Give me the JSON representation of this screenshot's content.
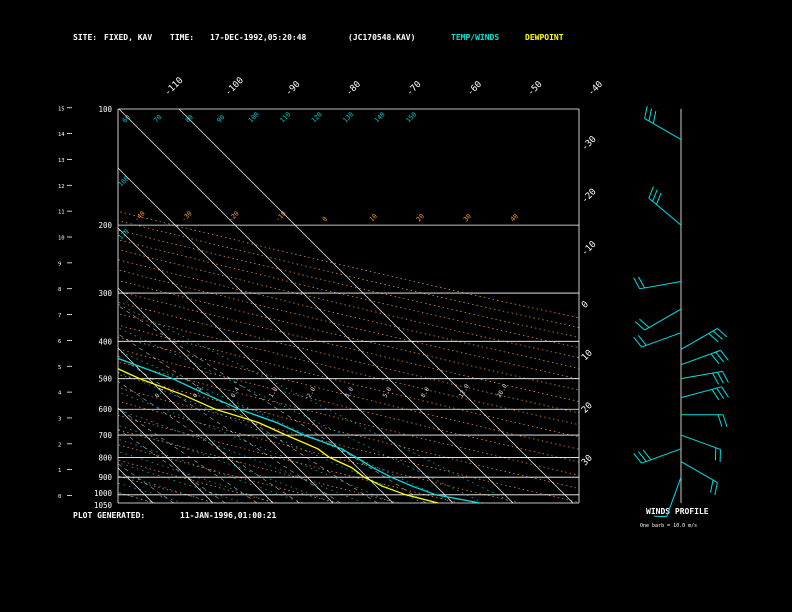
{
  "header": {
    "site_label": "SITE:",
    "site_value": "FIXED, KAV",
    "time_label": "TIME:",
    "time_value": "17-DEC-1992,05:20:48",
    "file_id": "(JC170548.KAV)",
    "temp_winds_label": "TEMP/WINDS",
    "dewpoint_label": "DEWPOINT"
  },
  "footer": {
    "plot_generated_label": "PLOT GENERATED:",
    "plot_generated_value": "11-JAN-1996,01:00:21",
    "winds_profile_label": "WINDS PROFILE",
    "barb_note": "One barb = 10.0 m/s"
  },
  "colors": {
    "background": "#000000",
    "temperature": "#00e0e0",
    "dewpoint": "#ffff00",
    "isobar": "#ffffff",
    "isotherm": "#ffffff",
    "dry_adiabat": "#ff9933",
    "moist_adiabat": "#00cccc",
    "mixing_ratio": "#ffffff",
    "wind_barb": "#00e0e0"
  },
  "chart_data": {
    "type": "line",
    "chart_subtype": "skew-T log-P diagram",
    "y_axis_pressure_labels": [
      "100",
      "200",
      "300",
      "400",
      "500",
      "600",
      "700",
      "800",
      "900",
      "1000",
      "1050"
    ],
    "y_axis_pressure_hpa": [
      100,
      200,
      300,
      400,
      500,
      600,
      700,
      800,
      900,
      1000,
      1050
    ],
    "y_axis_height_labels": [
      "0",
      "1",
      "2",
      "3",
      "4",
      "5",
      "6",
      "7",
      "8",
      "9",
      "10",
      "11",
      "12",
      "13",
      "14",
      "15"
    ],
    "top_temperature_labels": [
      "-110",
      "-100",
      "-90",
      "-80",
      "-70",
      "-60",
      "-50",
      "-40"
    ],
    "right_temperature_labels": [
      "-30",
      "-20",
      "-10",
      "0",
      "10",
      "20",
      "30"
    ],
    "dry_adiabat_labels": [
      "-40",
      "-30",
      "-20",
      "-10",
      "0",
      "10",
      "20",
      "30",
      "40"
    ],
    "moist_adiabat_labels": [
      "60",
      "70",
      "80",
      "90",
      "100",
      "110",
      "120",
      "130",
      "140",
      "150",
      "160",
      "170"
    ],
    "mixing_ratio_labels": [
      "0.1",
      "0.2",
      "0.4",
      "1.0",
      "2.0",
      "3.0",
      "5.0",
      "8.0",
      "12.0",
      "20.0"
    ],
    "ylim": [
      1050,
      100
    ],
    "y_scale": "log",
    "skew": "45 degrees",
    "series": [
      {
        "name": "TEMP/WINDS",
        "color": "#00e0e0",
        "points": [
          {
            "p": 1050,
            "t": 34.5
          },
          {
            "p": 1000,
            "t": 28.5
          },
          {
            "p": 950,
            "t": 26.0
          },
          {
            "p": 900,
            "t": 24.0
          },
          {
            "p": 850,
            "t": 22.5
          },
          {
            "p": 800,
            "t": 21.5
          },
          {
            "p": 760,
            "t": 20.5
          },
          {
            "p": 700,
            "t": 16.5
          },
          {
            "p": 650,
            "t": 14.0
          },
          {
            "p": 600,
            "t": 10.0
          },
          {
            "p": 550,
            "t": 7.0
          },
          {
            "p": 500,
            "t": 4.0
          },
          {
            "p": 450,
            "t": -1.0
          },
          {
            "p": 400,
            "t": -7.0
          },
          {
            "p": 350,
            "t": -13.5
          },
          {
            "p": 300,
            "t": -21.5
          },
          {
            "p": 250,
            "t": -32.5
          },
          {
            "p": 200,
            "t": -44.0
          },
          {
            "p": 150,
            "t": -58.0
          },
          {
            "p": 120,
            "t": -68.0
          },
          {
            "p": 100,
            "t": -76.0
          }
        ]
      },
      {
        "name": "DEWPOINT",
        "color": "#ffff00",
        "points": [
          {
            "p": 1050,
            "t": 27.5
          },
          {
            "p": 1000,
            "t": 23.5
          },
          {
            "p": 950,
            "t": 21.0
          },
          {
            "p": 900,
            "t": 19.5
          },
          {
            "p": 850,
            "t": 19.0
          },
          {
            "p": 800,
            "t": 17.0
          },
          {
            "p": 760,
            "t": 16.5
          },
          {
            "p": 700,
            "t": 13.5
          },
          {
            "p": 650,
            "t": 11.0
          },
          {
            "p": 600,
            "t": 6.0
          },
          {
            "p": 550,
            "t": 3.0
          },
          {
            "p": 500,
            "t": -1.5
          },
          {
            "p": 450,
            "t": -5.0
          },
          {
            "p": 400,
            "t": -10.5
          },
          {
            "p": 350,
            "t": -17.0
          },
          {
            "p": 300,
            "t": -25.5
          },
          {
            "p": 250,
            "t": -37.0
          },
          {
            "p": 200,
            "t": -48.5
          },
          {
            "p": 150,
            "t": -62.0
          },
          {
            "p": 120,
            "t": -71.0
          },
          {
            "p": 100,
            "t": -79.0
          }
        ]
      }
    ],
    "winds": [
      {
        "p": 120,
        "dir_deg": 300,
        "speed_ms": 25
      },
      {
        "p": 200,
        "dir_deg": 310,
        "speed_ms": 28
      },
      {
        "p": 280,
        "dir_deg": 260,
        "speed_ms": 20
      },
      {
        "p": 330,
        "dir_deg": 240,
        "speed_ms": 18
      },
      {
        "p": 380,
        "dir_deg": 250,
        "speed_ms": 22
      },
      {
        "p": 420,
        "dir_deg": 60,
        "speed_ms": 30
      },
      {
        "p": 460,
        "dir_deg": 70,
        "speed_ms": 28
      },
      {
        "p": 500,
        "dir_deg": 80,
        "speed_ms": 30
      },
      {
        "p": 560,
        "dir_deg": 75,
        "speed_ms": 25
      },
      {
        "p": 620,
        "dir_deg": 90,
        "speed_ms": 20
      },
      {
        "p": 700,
        "dir_deg": 110,
        "speed_ms": 20
      },
      {
        "p": 760,
        "dir_deg": 250,
        "speed_ms": 25
      },
      {
        "p": 820,
        "dir_deg": 120,
        "speed_ms": 15
      },
      {
        "p": 900,
        "dir_deg": 200,
        "speed_ms": 12
      }
    ]
  }
}
